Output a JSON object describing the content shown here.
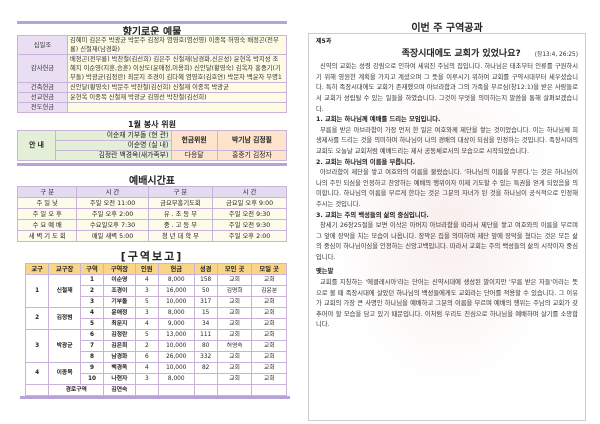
{
  "offerings": {
    "title": "향기로운 예물",
    "rows": [
      {
        "label": "십일조",
        "value": "김혜미 김은주 박광균 박문주 김정자 염영호(염선영) 이종목 허영숙 배정곤(전무룡) 신철재(남경화)"
      },
      {
        "label": "감사헌금",
        "value": "배정곤(전무룡) 박찬철(김선희) 김은주 신철재(남경화,신은성) 윤현옥 박지성 조혜지 이순영(지훈,승훈) 이상도(윤애정,이용희) 신안달(황영숙) 김옥자 홍중기(기부돌) 박광균(김정란) 최문지 조경이 김다혜 염영호(김호연) 박문자 백윤자 무명1"
      },
      {
        "label": "건축헌금",
        "value": "신안달(황영숙) 박문주 박찬철(김선희) 신철재 이종목 박광균"
      },
      {
        "label": "선교헌금",
        "value": "윤현옥 이종목 신철재 박광균 김영선 박찬철(김선희)"
      },
      {
        "label": "전도헌금",
        "value": ""
      }
    ]
  },
  "service": {
    "title": "1월 봉사 위원",
    "guide_label": "안  내",
    "guide1": "이순재 기부돌 (현 관)",
    "guide2": "이순영 (실 내)",
    "guide3": "김정란 백경옥(새가족부)",
    "offering_label": "헌금위원",
    "offering_names": "박기남 김정필",
    "extra1": "다응달",
    "extra2": "홍중기 김정자"
  },
  "worship": {
    "title": "예배시간표",
    "header": [
      "구   분",
      "시   간",
      "구   분",
      "시   간"
    ],
    "rows": [
      [
        "주  일  낮",
        "주일 오전  11:00",
        "금요부흥기도회",
        "금요일 오후  9:00"
      ],
      [
        "주 일 오 후",
        "주일 오후   2:00",
        "유 . 초 등 부",
        "주일  오전  9:30"
      ],
      [
        "수 요 예 배",
        "수요일오후  7:30",
        "중 . 고 등 부",
        "주일  오전  9:30"
      ],
      [
        "새 벽 기 도 회",
        "매일 새벽   5:00",
        "청 년 대 학 부",
        "주일  오후  2:00"
      ]
    ]
  },
  "report": {
    "title": "[구역보고]",
    "header": [
      "교구",
      "교구장",
      "구역",
      "구역장",
      "인원",
      "헌금",
      "성경",
      "모인 곳",
      "모일 곳"
    ],
    "groups": [
      {
        "gyogu": "1",
        "leader": "신철재",
        "rows": [
          [
            "1",
            "이순영",
            "4",
            "8,000",
            "158",
            "교회",
            "교회"
          ],
          [
            "2",
            "조경이",
            "3",
            "16,000",
            "50",
            "김명희",
            "김윤분"
          ],
          [
            "3",
            "기부돌",
            "5",
            "10,000",
            "317",
            "교회",
            "교회"
          ]
        ]
      },
      {
        "gyogu": "2",
        "leader": "김정범",
        "rows": [
          [
            "4",
            "윤애정",
            "3",
            "8,000",
            "15",
            "교회",
            "교회"
          ],
          [
            "5",
            "최문지",
            "4",
            "9,000",
            "34",
            "교회",
            "교회"
          ]
        ]
      },
      {
        "gyogu": "3",
        "leader": "박광균",
        "rows": [
          [
            "6",
            "김정란",
            "5",
            "13,000",
            "111",
            "교회",
            "교회"
          ],
          [
            "7",
            "김은희",
            "2",
            "10,000",
            "80",
            "허영숙",
            "교회"
          ],
          [
            "8",
            "남경화",
            "6",
            "26,000",
            "332",
            "교회",
            "교회"
          ]
        ]
      },
      {
        "gyogu": "4",
        "leader": "이종목",
        "rows": [
          [
            "9",
            "백경옥",
            "4",
            "10,000",
            "82",
            "교회",
            "교회"
          ],
          [
            "10",
            "나현자",
            "3",
            "8,000",
            "",
            "교회",
            "교회"
          ]
        ]
      }
    ],
    "elder": {
      "label": "경로구역",
      "leader": "김연숙"
    }
  },
  "study": {
    "title": "이번 주 구역공과",
    "lesson": "제5과",
    "heading": "족장시대에도 교회가 있었나요?",
    "ref": "(창13:4, 26:25)",
    "intro": "신약의 교회는 성령 강림으로 인하여 세워진 주님의 집입니다. 하나님은 태초부터 인류를 구원하시기 위해 영원한 계획을 가지고 계셨으며 그 뜻을 이루시기 위하여 교회를 구약시대부터 세우셨습니다. 특히 족장시대에도 교회가 존재했으며 아브라함과 그의 가족을 부르심(창12:1)을 받은 사람들로서 교회가 성립될 수 있는 일들을 하였습니다. 그것이 무엇을 의미하는지 말씀을 통해 살펴보겠습니다.",
    "points": [
      {
        "h": "1. 교회는 하나님께 예배를 드리는 모임입니다.",
        "t": "부름을 받은 아브라함이 가장 먼저 한 일은 여호와께 제단을 쌓는 것이었습니다. 이는 하나님께 희생제사를 드리는 것을 의미하며 하나님이 나의 경배의 대상이 되심을 인정하는 것입니다. 족장시대의 교회도 오늘날 교회처럼 예배드리는 제사 공동체로서의 모습으로 시작되었습니다."
      },
      {
        "h": "2. 교회는 하나님의 이름을 부릅니다.",
        "t": "아브라함이 제단을 쌓고 여호와의 이름을 불렀습니다. '하나님의 이름을 부른다.'는 것은 하나님이 나의 주인 되심을 인정하고 찬양하는 예배의 행위이자 이제 기도할 수 있는 특권을 얻게 되었음을 의미합니다. 하나님의 이름을 부르게 한다는 것은 그분의 자녀가 된 것을 하나님이 공식적으로 인정해 주시는 것입니다."
      },
      {
        "h": "3. 교회는 주의 백성들의 삶의 중심입니다.",
        "t": "창세기 26장25절을 보면 이삭은 아버지 아브라함을 따라서 제단을 쌓고 여호와의 이름을 부르며 그 앞에 장막을 치는 모습이 나옵니다. 장막은 집을 의미하며 제단 앞에 장막을 쳤다는 것은 모든 삶의 중심이 하나님이심을 인정하는 신앙고백입니다. 따라서 교회는 주의 백성들의 삶의 시작이자 중심입니다."
      }
    ],
    "closing_title": "맺는말",
    "closing": "교회를 지칭하는 '에클레시아'라는 단어는 신약시대에 생성된 말이지만 '부름 받은 자들'이라는 뜻으로 볼 때 족장시대에 살았던 하나님의 백성들에게도 교회라는 단어를 적용할 수 있습니다. 그 이유가 교회의 가장 큰 사명인 하나님을 예배하고 그분의 이름을 부르며 예배의 행위는 주님의 교회가 갖추어야 할 모습을 담고 있기 때문입니다. 이처럼 우리도 진심으로 하나님을 예배하며 살기를 소망합니다."
  },
  "colors": {
    "accent_bar": "#b5a3d9",
    "label_bg": "#e9def2",
    "value_bg": "#fdfbe4",
    "report_header": "#f9d58a"
  }
}
